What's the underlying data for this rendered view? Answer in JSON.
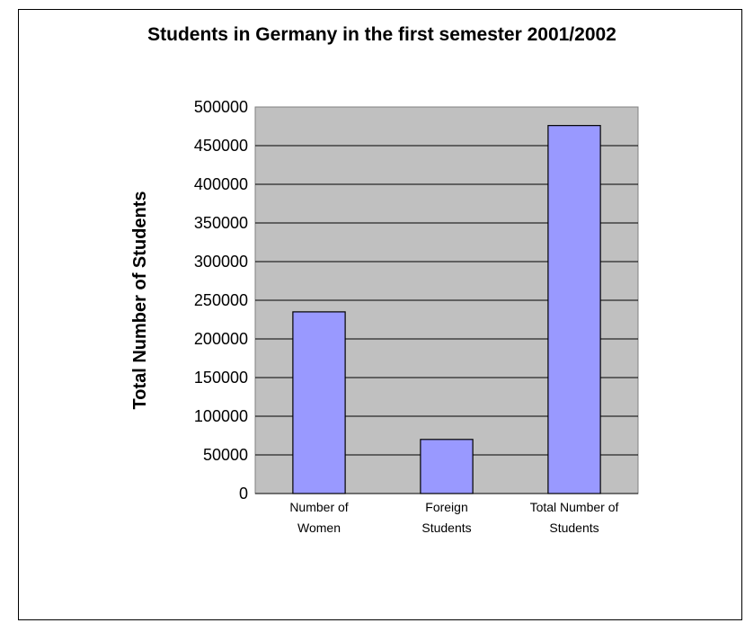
{
  "chart_data": {
    "type": "bar",
    "title": "Students in Germany in the first semester 2001/2002",
    "xlabel": "",
    "ylabel": "Total Number of Students",
    "categories": [
      [
        "Number of",
        "Women"
      ],
      [
        "Foreign",
        "Students"
      ],
      [
        "Total Number of",
        "Students"
      ]
    ],
    "values": [
      235000,
      70000,
      476000
    ],
    "ylim": [
      0,
      500000
    ],
    "yticks": [
      "0",
      "50000",
      "100000",
      "150000",
      "200000",
      "250000",
      "300000",
      "350000",
      "400000",
      "450000",
      "500000"
    ],
    "grid": true,
    "colors": {
      "plot_bg": "#c0c0c0",
      "bar_fill": "#9999ff",
      "bar_stroke": "#000000"
    }
  }
}
